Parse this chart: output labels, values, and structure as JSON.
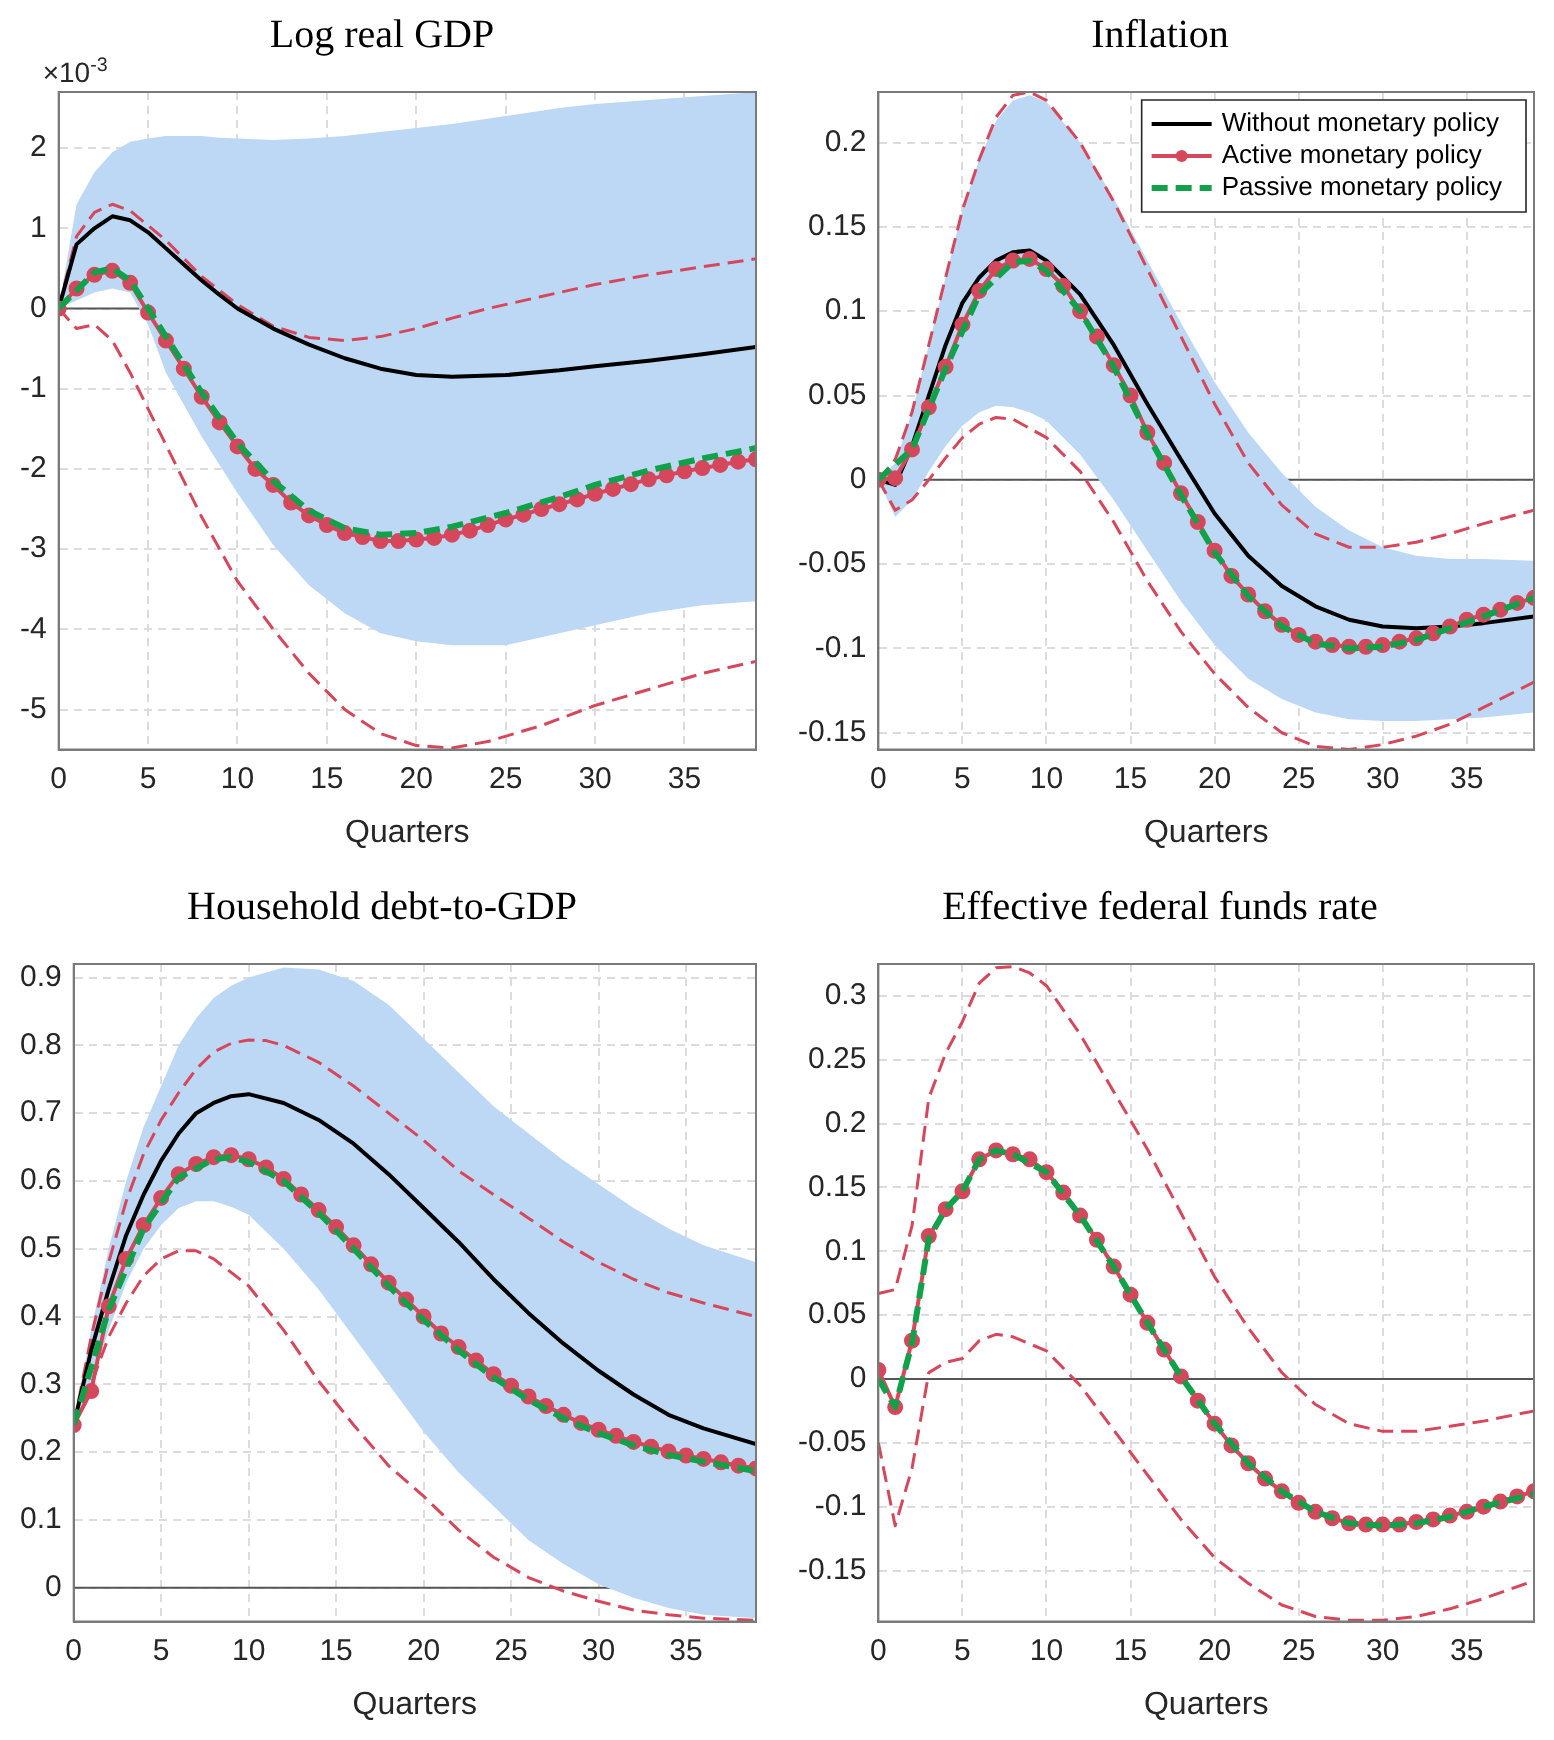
{
  "chart_data": [
    {
      "type": "line",
      "title": "Log real GDP",
      "xlabel": "Quarters",
      "annotations": [
        "×10$^{-3}$"
      ],
      "x": [
        0,
        1,
        2,
        3,
        4,
        5,
        6,
        7,
        8,
        9,
        10,
        11,
        12,
        13,
        14,
        15,
        16,
        17,
        18,
        19,
        20,
        21,
        22,
        23,
        24,
        25,
        26,
        27,
        28,
        29,
        30,
        31,
        32,
        33,
        34,
        35,
        36,
        37,
        38,
        39
      ],
      "xlim": [
        0,
        39
      ],
      "xticks": [
        0,
        5,
        10,
        15,
        20,
        25,
        30,
        35
      ],
      "ylim": [
        -5.5,
        2.7
      ],
      "yticks": [
        -5,
        -4,
        -3,
        -2,
        -1,
        0,
        1,
        2
      ],
      "grid": true,
      "ref_lines": [
        {
          "axis": "y",
          "value": 0
        }
      ],
      "series": [
        {
          "color": "#d6475b",
          "line_style": "dashed",
          "x": [
            0,
            1,
            2,
            3,
            4,
            6,
            8,
            10,
            12,
            14,
            16,
            18,
            20,
            22,
            24,
            27,
            30,
            33,
            36,
            39
          ],
          "values": [
            0,
            0.9,
            1.2,
            1.3,
            1.22,
            0.85,
            0.4,
            0.05,
            -0.22,
            -0.36,
            -0.4,
            -0.35,
            -0.25,
            -0.12,
            0,
            0.15,
            0.3,
            0.42,
            0.52,
            0.62
          ]
        },
        {
          "color": "#d6475b",
          "line_style": "dashed",
          "x": [
            0,
            1,
            2,
            3,
            4,
            6,
            8,
            10,
            12,
            14,
            16,
            18,
            20,
            22,
            24,
            27,
            30,
            33,
            36,
            39
          ],
          "values": [
            0,
            -0.25,
            -0.2,
            -0.4,
            -0.8,
            -1.7,
            -2.6,
            -3.4,
            -4.0,
            -4.55,
            -5.0,
            -5.3,
            -5.45,
            -5.48,
            -5.4,
            -5.2,
            -4.95,
            -4.75,
            -4.55,
            -4.4
          ]
        },
        {
          "color": "#000000",
          "x": [
            0,
            1,
            2,
            3,
            4,
            5,
            6,
            7,
            8,
            9,
            10,
            12,
            14,
            16,
            18,
            20,
            22,
            25,
            28,
            30,
            33,
            36,
            39
          ],
          "values": [
            0,
            0.8,
            1.0,
            1.15,
            1.1,
            0.95,
            0.75,
            0.55,
            0.35,
            0.17,
            0,
            -0.25,
            -0.45,
            -0.62,
            -0.75,
            -0.83,
            -0.85,
            -0.83,
            -0.77,
            -0.72,
            -0.65,
            -0.57,
            -0.48
          ],
          "lower": [
            0,
            0.1,
            0.2,
            0.25,
            0.2,
            -0.2,
            -0.8,
            -1.2,
            -1.6,
            -1.95,
            -2.3,
            -2.95,
            -3.45,
            -3.8,
            -4.05,
            -4.15,
            -4.2,
            -4.2,
            -4.05,
            -3.95,
            -3.8,
            -3.7,
            -3.65
          ],
          "upper": [
            0,
            1.3,
            1.7,
            1.95,
            2.08,
            2.12,
            2.15,
            2.15,
            2.15,
            2.13,
            2.12,
            2.1,
            2.12,
            2.15,
            2.2,
            2.25,
            2.3,
            2.4,
            2.5,
            2.55,
            2.6,
            2.65,
            2.7
          ]
        },
        {
          "color": "#d6475b",
          "marker": "circle",
          "values": [
            0,
            0.25,
            0.42,
            0.47,
            0.32,
            -0.05,
            -0.4,
            -0.75,
            -1.1,
            -1.42,
            -1.72,
            -2.0,
            -2.2,
            -2.42,
            -2.58,
            -2.7,
            -2.8,
            -2.85,
            -2.9,
            -2.9,
            -2.88,
            -2.86,
            -2.82,
            -2.77,
            -2.7,
            -2.63,
            -2.57,
            -2.5,
            -2.44,
            -2.38,
            -2.31,
            -2.25,
            -2.19,
            -2.13,
            -2.08,
            -2.03,
            -1.99,
            -1.95,
            -1.91,
            -1.88
          ]
        },
        {
          "color": "#12a14b",
          "line_style": "dashed",
          "x": [
            0,
            2,
            3,
            4,
            6,
            8,
            10,
            12,
            14,
            16,
            18,
            20,
            22,
            25,
            28,
            30,
            33,
            36,
            39
          ],
          "values": [
            0,
            0.45,
            0.5,
            0.35,
            -0.35,
            -1.05,
            -1.68,
            -2.15,
            -2.52,
            -2.74,
            -2.82,
            -2.8,
            -2.72,
            -2.55,
            -2.35,
            -2.2,
            -2.02,
            -1.87,
            -1.74
          ]
        }
      ]
    },
    {
      "type": "line",
      "title": "Inflation",
      "xlabel": "Quarters",
      "legend": "top right",
      "x": [
        0,
        1,
        2,
        3,
        4,
        5,
        6,
        7,
        8,
        9,
        10,
        11,
        12,
        13,
        14,
        15,
        16,
        17,
        18,
        19,
        20,
        21,
        22,
        23,
        24,
        25,
        26,
        27,
        28,
        29,
        30,
        31,
        32,
        33,
        34,
        35,
        36,
        37,
        38,
        39
      ],
      "xlim": [
        0,
        39
      ],
      "xticks": [
        0,
        5,
        10,
        15,
        20,
        25,
        30,
        35
      ],
      "ylim": [
        -0.16,
        0.23
      ],
      "yticks": [
        -0.15,
        -0.1,
        -0.05,
        0,
        0.05,
        0.1,
        0.15,
        0.2
      ],
      "grid": true,
      "ref_lines": [
        {
          "axis": "y",
          "value": 0
        }
      ],
      "series": [
        {
          "color": "#d6475b",
          "line_style": "dashed",
          "x": [
            0,
            1,
            2,
            3,
            4,
            5,
            6,
            7,
            8,
            9,
            10,
            12,
            14,
            16,
            18,
            20,
            22,
            24,
            26,
            28,
            30,
            32,
            34,
            36,
            39
          ],
          "values": [
            0,
            0.012,
            0.04,
            0.08,
            0.12,
            0.16,
            0.19,
            0.215,
            0.228,
            0.23,
            0.225,
            0.2,
            0.165,
            0.125,
            0.085,
            0.045,
            0.01,
            -0.015,
            -0.032,
            -0.04,
            -0.04,
            -0.037,
            -0.032,
            -0.026,
            -0.018
          ]
        },
        {
          "color": "#d6475b",
          "line_style": "dashed",
          "x": [
            0,
            1,
            2,
            3,
            4,
            5,
            6,
            7,
            8,
            10,
            12,
            14,
            16,
            18,
            20,
            22,
            24,
            26,
            28,
            30,
            32,
            34,
            36,
            39
          ],
          "values": [
            0,
            -0.018,
            -0.012,
            0,
            0.013,
            0.025,
            0.033,
            0.037,
            0.036,
            0.025,
            0.005,
            -0.025,
            -0.06,
            -0.09,
            -0.115,
            -0.135,
            -0.15,
            -0.158,
            -0.16,
            -0.157,
            -0.152,
            -0.145,
            -0.135,
            -0.12
          ]
        },
        {
          "name": "Without monetary policy",
          "color": "#000000",
          "x": [
            0,
            1,
            2,
            3,
            4,
            5,
            6,
            7,
            8,
            9,
            10,
            12,
            14,
            16,
            18,
            20,
            22,
            24,
            26,
            28,
            30,
            32,
            34,
            36,
            39
          ],
          "values": [
            0,
            -0.003,
            0.02,
            0.05,
            0.08,
            0.105,
            0.12,
            0.13,
            0.135,
            0.136,
            0.13,
            0.11,
            0.08,
            0.045,
            0.012,
            -0.02,
            -0.045,
            -0.063,
            -0.075,
            -0.083,
            -0.087,
            -0.088,
            -0.087,
            -0.085,
            -0.081
          ],
          "lower": [
            0,
            -0.022,
            -0.012,
            0.005,
            0.02,
            0.032,
            0.04,
            0.044,
            0.043,
            0.04,
            0.035,
            0.015,
            -0.012,
            -0.042,
            -0.072,
            -0.098,
            -0.118,
            -0.13,
            -0.138,
            -0.142,
            -0.143,
            -0.143,
            -0.142,
            -0.141,
            -0.138
          ],
          "upper": [
            0,
            0.01,
            0.04,
            0.08,
            0.12,
            0.16,
            0.19,
            0.213,
            0.225,
            0.228,
            0.224,
            0.2,
            0.167,
            0.13,
            0.093,
            0.058,
            0.028,
            0.004,
            -0.016,
            -0.03,
            -0.04,
            -0.045,
            -0.047,
            -0.047,
            -0.048
          ]
        },
        {
          "name": "Active monetary policy",
          "color": "#d6475b",
          "marker": "circle",
          "values": [
            0,
            0.001,
            0.018,
            0.043,
            0.067,
            0.092,
            0.112,
            0.125,
            0.13,
            0.131,
            0.125,
            0.115,
            0.1,
            0.085,
            0.068,
            0.05,
            0.028,
            0.01,
            -0.008,
            -0.025,
            -0.042,
            -0.057,
            -0.068,
            -0.078,
            -0.086,
            -0.092,
            -0.096,
            -0.098,
            -0.099,
            -0.099,
            -0.098,
            -0.096,
            -0.094,
            -0.091,
            -0.087,
            -0.083,
            -0.08,
            -0.077,
            -0.073,
            -0.07
          ]
        },
        {
          "name": "Passive monetary policy",
          "color": "#12a14b",
          "line_style": "dashed",
          "x": [
            0,
            2,
            4,
            6,
            8,
            9,
            10,
            12,
            14,
            16,
            18,
            20,
            22,
            24,
            26,
            28,
            30,
            32,
            34,
            36,
            39
          ],
          "values": [
            0,
            0.018,
            0.066,
            0.11,
            0.129,
            0.13,
            0.124,
            0.1,
            0.067,
            0.027,
            -0.009,
            -0.043,
            -0.069,
            -0.087,
            -0.097,
            -0.1,
            -0.099,
            -0.095,
            -0.088,
            -0.081,
            -0.07
          ]
        }
      ]
    },
    {
      "type": "line",
      "title": "Household debt-to-GDP",
      "xlabel": "Quarters",
      "x": [
        0,
        1,
        2,
        3,
        4,
        5,
        6,
        7,
        8,
        9,
        10,
        11,
        12,
        13,
        14,
        15,
        16,
        17,
        18,
        19,
        20,
        21,
        22,
        23,
        24,
        25,
        26,
        27,
        28,
        29,
        30,
        31,
        32,
        33,
        34,
        35,
        36,
        37,
        38,
        39
      ],
      "xlim": [
        0,
        39
      ],
      "xticks": [
        0,
        5,
        10,
        15,
        20,
        25,
        30,
        35
      ],
      "ylim": [
        -0.05,
        0.92
      ],
      "yticks": [
        0,
        0.1,
        0.2,
        0.3,
        0.4,
        0.5,
        0.6,
        0.7,
        0.8,
        0.9
      ],
      "grid": true,
      "ref_lines": [
        {
          "axis": "y",
          "value": 0
        }
      ],
      "series": [
        {
          "color": "#d6475b",
          "line_style": "dashed",
          "x": [
            0,
            1,
            2,
            3,
            4,
            5,
            6,
            7,
            8,
            9,
            10,
            11,
            12,
            14,
            16,
            18,
            20,
            22,
            24,
            26,
            28,
            30,
            32,
            34,
            36,
            39
          ],
          "values": [
            0.24,
            0.37,
            0.48,
            0.57,
            0.64,
            0.69,
            0.73,
            0.765,
            0.79,
            0.803,
            0.808,
            0.807,
            0.8,
            0.775,
            0.74,
            0.7,
            0.66,
            0.615,
            0.58,
            0.545,
            0.51,
            0.48,
            0.455,
            0.435,
            0.42,
            0.4
          ]
        },
        {
          "color": "#d6475b",
          "line_style": "dashed",
          "x": [
            0,
            1,
            2,
            3,
            4,
            5,
            6,
            7,
            8,
            10,
            12,
            14,
            16,
            18,
            20,
            22,
            24,
            26,
            28,
            30,
            32,
            34,
            36,
            39
          ],
          "values": [
            0.24,
            0.3,
            0.37,
            0.42,
            0.46,
            0.485,
            0.497,
            0.497,
            0.485,
            0.445,
            0.38,
            0.305,
            0.24,
            0.18,
            0.135,
            0.085,
            0.045,
            0.015,
            -0.005,
            -0.02,
            -0.033,
            -0.04,
            -0.045,
            -0.048
          ]
        },
        {
          "color": "#000000",
          "x": [
            0,
            1,
            2,
            3,
            4,
            5,
            6,
            7,
            8,
            9,
            10,
            12,
            14,
            16,
            18,
            20,
            22,
            24,
            26,
            28,
            30,
            32,
            34,
            36,
            39
          ],
          "values": [
            0.24,
            0.35,
            0.44,
            0.52,
            0.58,
            0.63,
            0.67,
            0.7,
            0.715,
            0.725,
            0.728,
            0.715,
            0.69,
            0.655,
            0.61,
            0.56,
            0.51,
            0.455,
            0.405,
            0.36,
            0.32,
            0.285,
            0.255,
            0.235,
            0.212
          ],
          "lower": [
            0.24,
            0.3,
            0.38,
            0.45,
            0.5,
            0.535,
            0.56,
            0.57,
            0.57,
            0.562,
            0.55,
            0.5,
            0.44,
            0.37,
            0.3,
            0.23,
            0.17,
            0.12,
            0.07,
            0.035,
            0.005,
            -0.015,
            -0.03,
            -0.04,
            -0.045
          ],
          "upper": [
            0.24,
            0.38,
            0.5,
            0.6,
            0.68,
            0.74,
            0.8,
            0.84,
            0.87,
            0.888,
            0.9,
            0.915,
            0.912,
            0.895,
            0.86,
            0.81,
            0.76,
            0.71,
            0.67,
            0.63,
            0.595,
            0.56,
            0.53,
            0.505,
            0.48
          ]
        },
        {
          "color": "#d6475b",
          "marker": "circle",
          "values": [
            0.24,
            0.29,
            0.415,
            0.485,
            0.535,
            0.575,
            0.61,
            0.625,
            0.635,
            0.638,
            0.632,
            0.62,
            0.603,
            0.58,
            0.557,
            0.532,
            0.505,
            0.477,
            0.45,
            0.425,
            0.4,
            0.375,
            0.355,
            0.335,
            0.315,
            0.298,
            0.282,
            0.268,
            0.255,
            0.243,
            0.233,
            0.224,
            0.215,
            0.208,
            0.201,
            0.195,
            0.19,
            0.185,
            0.18,
            0.176
          ]
        },
        {
          "color": "#12a14b",
          "line_style": "dashed",
          "x": [
            0,
            2,
            4,
            6,
            8,
            9,
            10,
            12,
            14,
            16,
            18,
            20,
            22,
            24,
            26,
            28,
            30,
            32,
            34,
            36,
            39
          ],
          "values": [
            0.24,
            0.41,
            0.53,
            0.605,
            0.632,
            0.635,
            0.628,
            0.6,
            0.553,
            0.5,
            0.445,
            0.395,
            0.35,
            0.31,
            0.277,
            0.25,
            0.228,
            0.21,
            0.196,
            0.186,
            0.172
          ]
        }
      ]
    },
    {
      "type": "line",
      "title": "Effective federal funds rate",
      "xlabel": "Quarters",
      "x": [
        0,
        1,
        2,
        3,
        4,
        5,
        6,
        7,
        8,
        9,
        10,
        11,
        12,
        13,
        14,
        15,
        16,
        17,
        18,
        19,
        20,
        21,
        22,
        23,
        24,
        25,
        26,
        27,
        28,
        29,
        30,
        31,
        32,
        33,
        34,
        35,
        36,
        37,
        38,
        39
      ],
      "xlim": [
        0,
        39
      ],
      "xticks": [
        0,
        5,
        10,
        15,
        20,
        25,
        30,
        35
      ],
      "ylim": [
        -0.19,
        0.325
      ],
      "yticks": [
        -0.15,
        -0.1,
        -0.05,
        0,
        0.05,
        0.1,
        0.15,
        0.2,
        0.25,
        0.3
      ],
      "grid": true,
      "ref_lines": [
        {
          "axis": "y",
          "value": 0
        }
      ],
      "series": [
        {
          "color": "#d6475b",
          "line_style": "dashed",
          "x": [
            0,
            1,
            2,
            3,
            4,
            5,
            6,
            7,
            8,
            9,
            10,
            12,
            14,
            16,
            18,
            20,
            22,
            24,
            26,
            28,
            30,
            32,
            34,
            36,
            39
          ],
          "values": [
            0.067,
            0.07,
            0.12,
            0.22,
            0.255,
            0.28,
            0.31,
            0.322,
            0.323,
            0.318,
            0.308,
            0.27,
            0.225,
            0.18,
            0.13,
            0.08,
            0.04,
            0.005,
            -0.02,
            -0.035,
            -0.041,
            -0.041,
            -0.037,
            -0.033,
            -0.025
          ]
        },
        {
          "color": "#d6475b",
          "line_style": "dashed",
          "x": [
            0,
            1,
            2,
            3,
            4,
            5,
            6,
            7,
            8,
            10,
            12,
            14,
            16,
            18,
            20,
            22,
            24,
            26,
            28,
            30,
            32,
            34,
            36,
            39
          ],
          "values": [
            -0.05,
            -0.115,
            -0.07,
            0.005,
            0.013,
            0.016,
            0.03,
            0.035,
            0.033,
            0.022,
            -0.005,
            -0.04,
            -0.075,
            -0.11,
            -0.14,
            -0.16,
            -0.177,
            -0.186,
            -0.189,
            -0.189,
            -0.186,
            -0.18,
            -0.172,
            -0.158
          ]
        },
        {
          "color": "#d6475b",
          "marker": "circle",
          "values": [
            0.007,
            -0.022,
            0.03,
            0.112,
            0.133,
            0.147,
            0.172,
            0.179,
            0.176,
            0.172,
            0.162,
            0.146,
            0.128,
            0.109,
            0.088,
            0.066,
            0.044,
            0.023,
            0.002,
            -0.017,
            -0.035,
            -0.052,
            -0.066,
            -0.078,
            -0.088,
            -0.097,
            -0.104,
            -0.109,
            -0.113,
            -0.114,
            -0.114,
            -0.114,
            -0.112,
            -0.11,
            -0.107,
            -0.104,
            -0.1,
            -0.096,
            -0.092,
            -0.088
          ]
        },
        {
          "color": "#12a14b",
          "line_style": "dashed",
          "x": [
            0,
            1,
            2,
            3,
            4,
            5,
            6,
            7,
            8,
            10,
            12,
            14,
            16,
            18,
            20,
            22,
            24,
            26,
            28,
            30,
            32,
            34,
            36,
            39
          ],
          "values": [
            0,
            -0.022,
            0.028,
            0.11,
            0.133,
            0.147,
            0.172,
            0.179,
            0.176,
            0.162,
            0.128,
            0.088,
            0.044,
            0.002,
            -0.035,
            -0.066,
            -0.088,
            -0.104,
            -0.113,
            -0.115,
            -0.113,
            -0.108,
            -0.1,
            -0.09
          ]
        }
      ]
    }
  ]
}
